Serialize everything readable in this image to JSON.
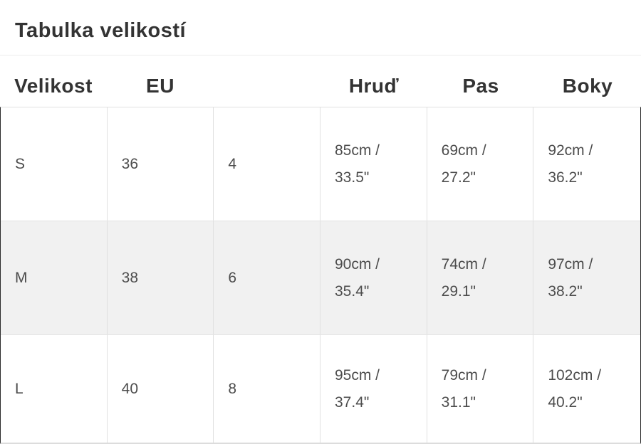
{
  "title": "Tabulka velikostí",
  "table": {
    "columns": [
      "Velikost",
      "EU",
      "",
      "Hruď",
      "Pas",
      "Boky"
    ],
    "rows": [
      {
        "velikost": "S",
        "eu": "36",
        "us": "4",
        "hrud": "85cm / 33.5\"",
        "pas": "69cm / 27.2\"",
        "boky": "92cm / 36.2\""
      },
      {
        "velikost": "M",
        "eu": "38",
        "us": "6",
        "hrud": "90cm / 35.4\"",
        "pas": "74cm / 29.1\"",
        "boky": "97cm / 38.2\""
      },
      {
        "velikost": "L",
        "eu": "40",
        "us": "8",
        "hrud": "95cm / 37.4\"",
        "pas": "79cm / 31.1\"",
        "boky": "102cm / 40.2\""
      }
    ]
  },
  "colors": {
    "heading_text": "#333333",
    "data_text": "#4c4c4c",
    "alt_row_bg": "#f1f1f1",
    "grid_line": "#e0e0e0",
    "divider_line": "#ececec",
    "side_border": "#2a2a2a"
  }
}
